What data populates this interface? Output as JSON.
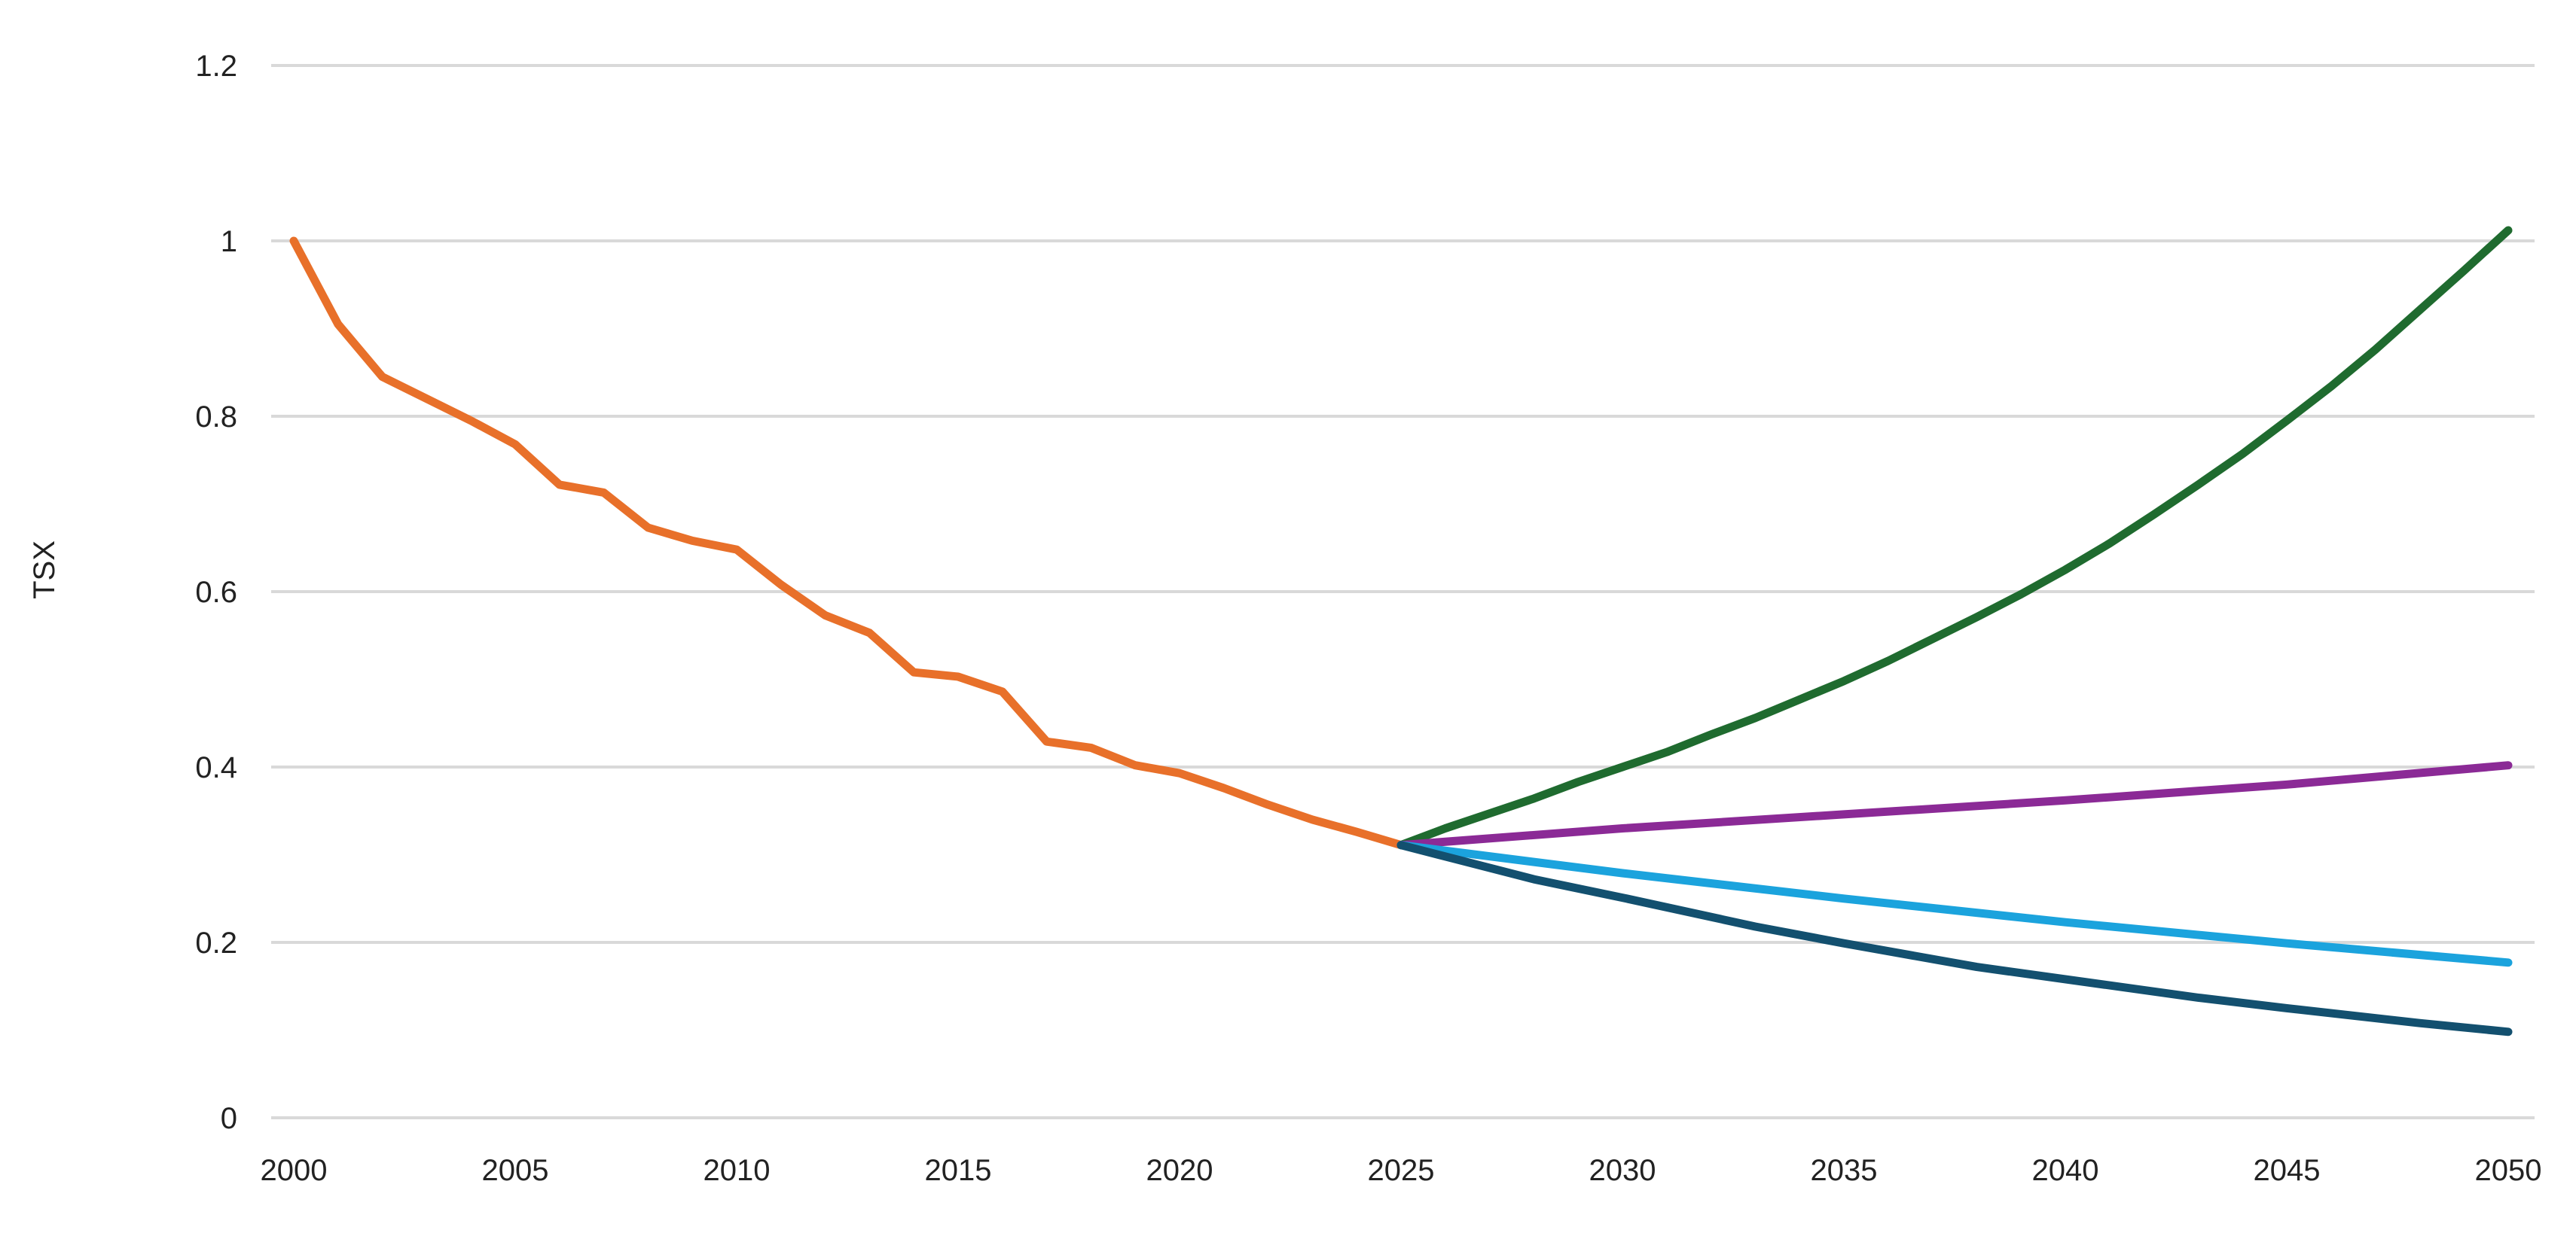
{
  "chart_data": {
    "type": "line",
    "title": "",
    "xlabel": "",
    "ylabel": "TSX",
    "xlim": [
      2000,
      2050
    ],
    "ylim": [
      0,
      1.2
    ],
    "x_ticks": [
      2000,
      2005,
      2010,
      2015,
      2020,
      2025,
      2030,
      2035,
      2040,
      2045,
      2050
    ],
    "x_tick_labels": [
      "2000",
      "2005",
      "2010",
      "2015",
      "2020",
      "2025",
      "2030",
      "2035",
      "2040",
      "2045",
      "2050"
    ],
    "y_ticks": [
      0,
      0.2,
      0.4,
      0.6,
      0.8,
      1,
      1.2
    ],
    "y_tick_labels": [
      "0",
      "0.2",
      "0.4",
      "0.6",
      "0.8",
      "1",
      "1.2"
    ],
    "grid": true,
    "legend": "none",
    "series": [
      {
        "color": "#e8702a",
        "x": [
          2000,
          2001,
          2002,
          2003,
          2004,
          2005,
          2006,
          2007,
          2008,
          2009,
          2010,
          2011,
          2012,
          2013,
          2014,
          2015,
          2016,
          2017,
          2018,
          2019,
          2020,
          2021,
          2022,
          2023,
          2024,
          2025
        ],
        "y": [
          1.0,
          0.905,
          0.845,
          0.82,
          0.795,
          0.768,
          0.722,
          0.713,
          0.673,
          0.658,
          0.648,
          0.608,
          0.573,
          0.553,
          0.508,
          0.503,
          0.486,
          0.429,
          0.422,
          0.402,
          0.393,
          0.376,
          0.357,
          0.34,
          0.326,
          0.311
        ]
      },
      {
        "color": "#1f6b2f",
        "x": [
          2025,
          2026,
          2027,
          2028,
          2029,
          2030,
          2031,
          2032,
          2033,
          2034,
          2035,
          2036,
          2037,
          2038,
          2039,
          2040,
          2041,
          2042,
          2043,
          2044,
          2045,
          2046,
          2047,
          2048,
          2049,
          2050
        ],
        "y": [
          0.311,
          0.33,
          0.347,
          0.364,
          0.383,
          0.4,
          0.417,
          0.437,
          0.456,
          0.477,
          0.498,
          0.521,
          0.546,
          0.571,
          0.597,
          0.625,
          0.655,
          0.688,
          0.722,
          0.757,
          0.795,
          0.834,
          0.876,
          0.921,
          0.966,
          1.012
        ]
      },
      {
        "color": "#8b2a96",
        "x": [
          2025,
          2030,
          2035,
          2040,
          2045,
          2050
        ],
        "y": [
          0.311,
          0.33,
          0.346,
          0.362,
          0.38,
          0.402
        ]
      },
      {
        "color": "#1ba3dd",
        "x": [
          2025,
          2030,
          2035,
          2040,
          2045,
          2050
        ],
        "y": [
          0.311,
          0.279,
          0.25,
          0.223,
          0.199,
          0.177
        ]
      },
      {
        "color": "#13506f",
        "x": [
          2025,
          2028,
          2030,
          2033,
          2035,
          2038,
          2040,
          2043,
          2045,
          2048,
          2050
        ],
        "y": [
          0.311,
          0.272,
          0.251,
          0.218,
          0.199,
          0.172,
          0.158,
          0.137,
          0.125,
          0.108,
          0.098
        ]
      }
    ]
  }
}
